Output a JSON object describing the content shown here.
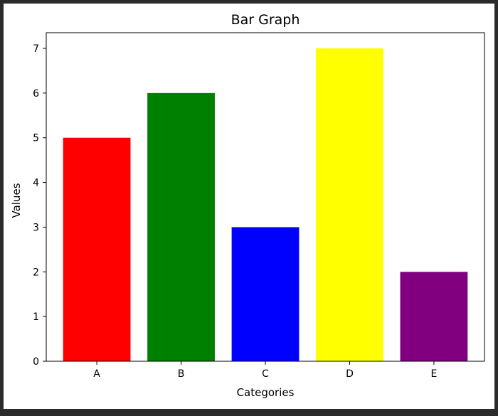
{
  "chart_data": {
    "type": "bar",
    "title": "Bar Graph",
    "xlabel": "Categories",
    "ylabel": "Values",
    "categories": [
      "A",
      "B",
      "C",
      "D",
      "E"
    ],
    "values": [
      5,
      6,
      3,
      7,
      2
    ],
    "colors": [
      "#ff0000",
      "#008000",
      "#0000ff",
      "#ffff00",
      "#800080"
    ],
    "ylim": [
      0,
      7.35
    ],
    "yticks": [
      0,
      1,
      2,
      3,
      4,
      5,
      6,
      7
    ],
    "grid": false,
    "legend": "none"
  }
}
